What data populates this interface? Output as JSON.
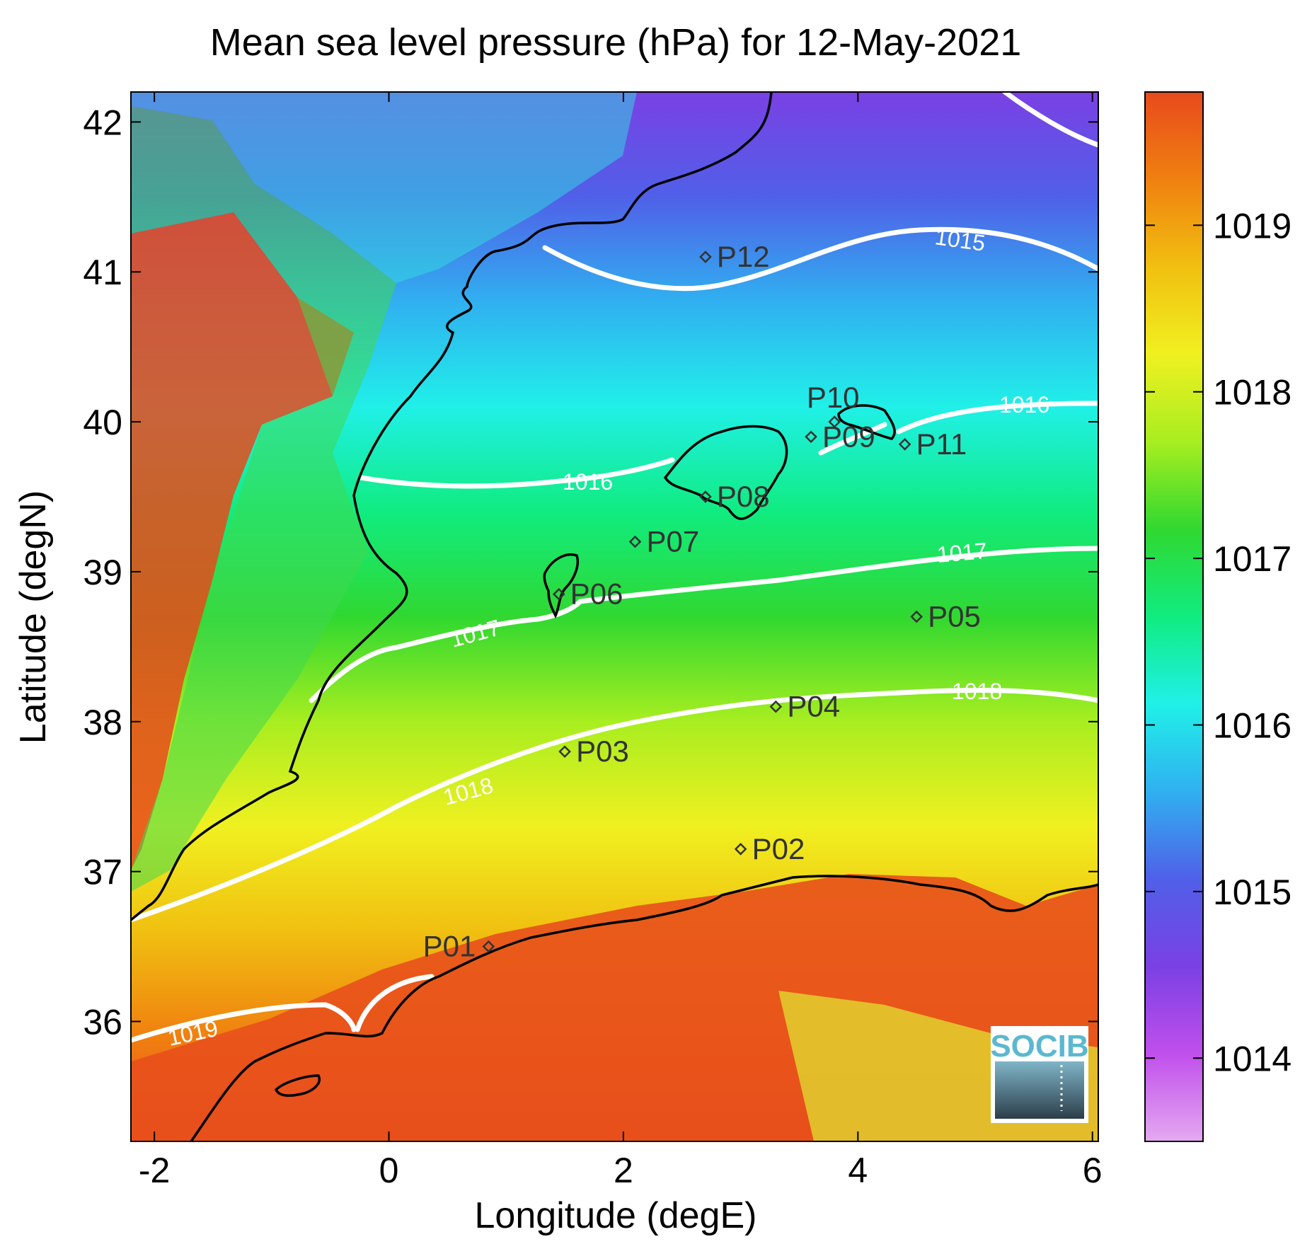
{
  "chart_data": {
    "type": "heatmap",
    "title": "Mean sea level pressure (hPa) for 12-May-2021",
    "xlabel": "Longitude (degE)",
    "ylabel": "Latitude (degN)",
    "xlim": [
      -2.2,
      6.05
    ],
    "ylim": [
      35.2,
      42.2
    ],
    "x_ticks": [
      -2,
      0,
      2,
      4,
      6
    ],
    "y_ticks": [
      36,
      37,
      38,
      39,
      40,
      41,
      42
    ],
    "colorbar": {
      "range": [
        1013.5,
        1019.8
      ],
      "ticks": [
        1014,
        1015,
        1016,
        1017,
        1018,
        1019
      ],
      "colormap": [
        "#e5a9f0",
        "#c050ec",
        "#7a40e4",
        "#5060e8",
        "#30b0f0",
        "#20f0e8",
        "#10ec80",
        "#30d830",
        "#a8ee20",
        "#f0f020",
        "#f0c010",
        "#f08010",
        "#e84a1c"
      ]
    },
    "contours": [
      {
        "level": 1015,
        "label": "1015"
      },
      {
        "level": 1016,
        "label": "1016"
      },
      {
        "level": 1017,
        "label": "1017"
      },
      {
        "level": 1018,
        "label": "1018"
      },
      {
        "level": 1019,
        "label": "1019"
      }
    ],
    "stations": [
      {
        "name": "P01",
        "lon": 0.85,
        "lat": 36.5
      },
      {
        "name": "P02",
        "lon": 3.0,
        "lat": 37.15
      },
      {
        "name": "P03",
        "lon": 1.5,
        "lat": 37.8
      },
      {
        "name": "P04",
        "lon": 3.3,
        "lat": 38.1
      },
      {
        "name": "P05",
        "lon": 4.5,
        "lat": 38.7
      },
      {
        "name": "P06",
        "lon": 1.45,
        "lat": 38.85
      },
      {
        "name": "P07",
        "lon": 2.1,
        "lat": 39.2
      },
      {
        "name": "P08",
        "lon": 2.7,
        "lat": 39.5
      },
      {
        "name": "P09",
        "lon": 3.6,
        "lat": 39.9
      },
      {
        "name": "P10",
        "lon": 3.8,
        "lat": 40.0
      },
      {
        "name": "P11",
        "lon": 4.4,
        "lat": 39.85
      },
      {
        "name": "P12",
        "lon": 2.7,
        "lat": 41.1
      }
    ]
  },
  "logo": {
    "text": "SOCIB"
  }
}
